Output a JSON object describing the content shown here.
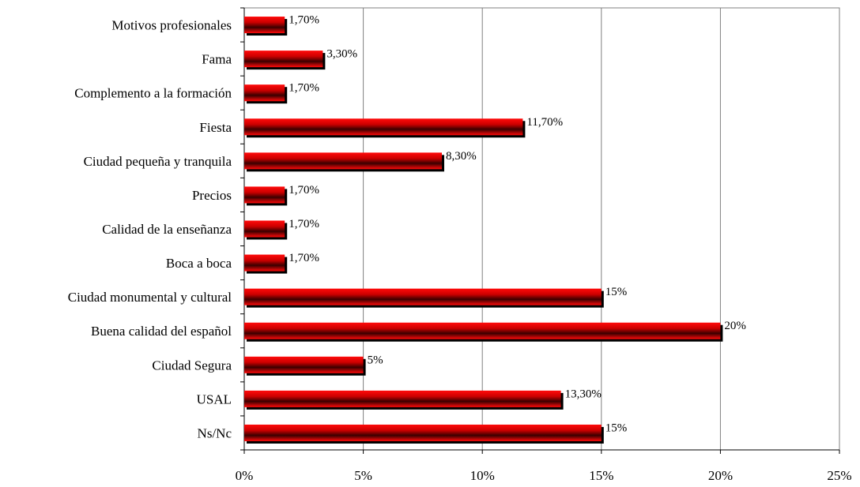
{
  "chart_data": {
    "type": "bar",
    "orientation": "horizontal",
    "categories": [
      "Motivos profesionales",
      "Fama",
      "Complemento a la formación",
      "Fiesta",
      "Ciudad pequeña y tranquila",
      "Precios",
      "Calidad de la enseñanza",
      "Boca a boca",
      "Ciudad monumental y cultural",
      "Buena calidad del español",
      "Ciudad Segura",
      "USAL",
      "Ns/Nc"
    ],
    "values": [
      1.7,
      3.3,
      1.7,
      11.7,
      8.3,
      1.7,
      1.7,
      1.7,
      15,
      20,
      5,
      13.3,
      15
    ],
    "data_labels": [
      "1,70%",
      "3,30%",
      "1,70%",
      "11,70%",
      "8,30%",
      "1,70%",
      "1,70%",
      "1,70%",
      "15%",
      "20%",
      "5%",
      "13,30%",
      "15%"
    ],
    "x_ticks": [
      "0%",
      "5%",
      "10%",
      "15%",
      "20%",
      "25%"
    ],
    "xlim": [
      0,
      25
    ],
    "grid": "vertical",
    "bar_color": "#e00000",
    "title": "",
    "xlabel": "",
    "ylabel": ""
  }
}
